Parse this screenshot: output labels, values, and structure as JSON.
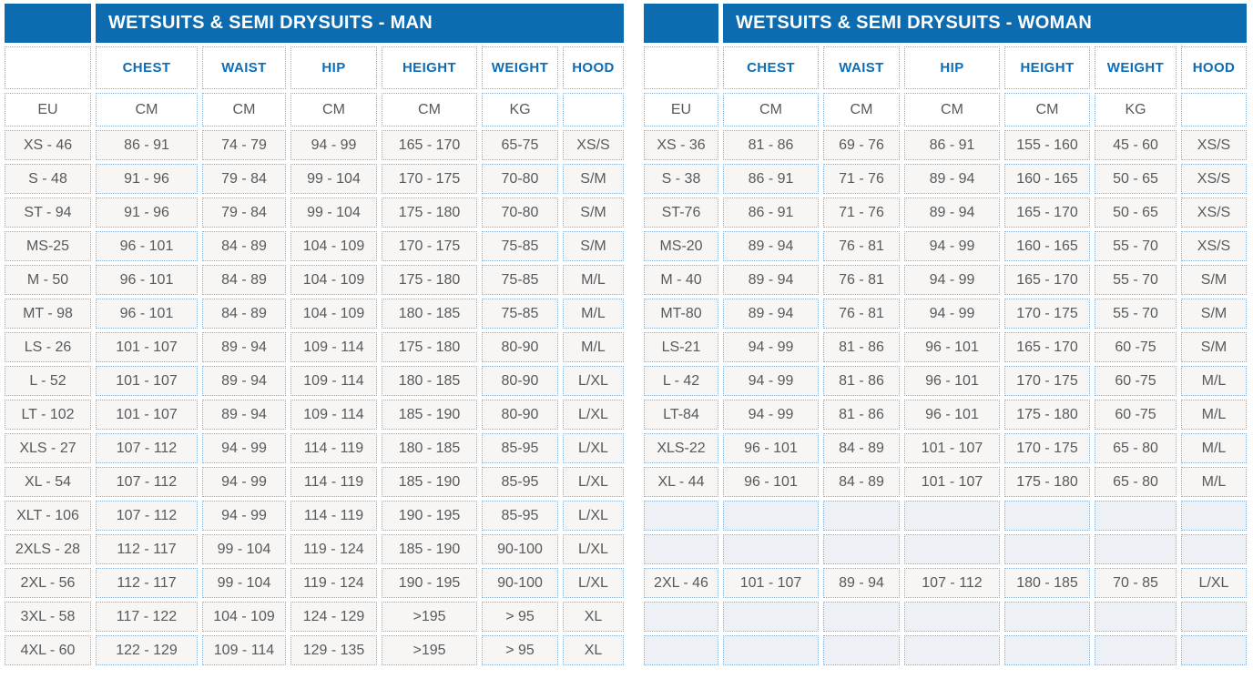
{
  "theme": {
    "title_bar_color": "#0d6bb0",
    "title_text_color": "#ffffff",
    "column_header_color": "#0d6db6",
    "cell_text_color": "#58595b",
    "grid_dot_color": "#8fb0cd",
    "cell_bg": "#f7f6f4",
    "header_bg": "#ffffff",
    "empty_cell_bg": "#edf1f6",
    "page_bg": "#ffffff"
  },
  "tables": [
    {
      "title": "WETSUITS & SEMI DRYSUITS - MAN",
      "columns": [
        "CHEST",
        "WAIST",
        "HIP",
        "HEIGHT",
        "WEIGHT",
        "HOOD"
      ],
      "units": [
        "EU",
        "CM",
        "CM",
        "CM",
        "CM",
        "KG",
        ""
      ],
      "rows": [
        [
          "XS - 46",
          "86 - 91",
          "74 - 79",
          "94 - 99",
          "165 - 170",
          "65-75",
          "XS/S"
        ],
        [
          "S - 48",
          "91 - 96",
          "79 - 84",
          "99 - 104",
          "170 - 175",
          "70-80",
          "S/M"
        ],
        [
          "ST - 94",
          "91 - 96",
          "79 - 84",
          "99 - 104",
          "175 - 180",
          "70-80",
          "S/M"
        ],
        [
          "MS-25",
          "96 - 101",
          "84 - 89",
          "104 - 109",
          "170 - 175",
          "75-85",
          "S/M"
        ],
        [
          "M - 50",
          "96 - 101",
          "84 - 89",
          "104 - 109",
          "175 - 180",
          "75-85",
          "M/L"
        ],
        [
          "MT - 98",
          "96 - 101",
          "84 - 89",
          "104 - 109",
          "180 - 185",
          "75-85",
          "M/L"
        ],
        [
          "LS - 26",
          "101 - 107",
          "89 - 94",
          "109 - 114",
          "175 - 180",
          "80-90",
          "M/L"
        ],
        [
          "L - 52",
          "101 - 107",
          "89 - 94",
          "109 - 114",
          "180 - 185",
          "80-90",
          "L/XL"
        ],
        [
          "LT - 102",
          "101 - 107",
          "89 - 94",
          "109 - 114",
          "185 - 190",
          "80-90",
          "L/XL"
        ],
        [
          "XLS - 27",
          "107 - 112",
          "94 - 99",
          "114 - 119",
          "180 - 185",
          "85-95",
          "L/XL"
        ],
        [
          "XL - 54",
          "107 - 112",
          "94 - 99",
          "114 - 119",
          "185 - 190",
          "85-95",
          "L/XL"
        ],
        [
          "XLT - 106",
          "107 - 112",
          "94 - 99",
          "114 - 119",
          "190 - 195",
          "85-95",
          "L/XL"
        ],
        [
          "2XLS - 28",
          "112 - 117",
          "99 - 104",
          "119 - 124",
          "185 - 190",
          "90-100",
          "L/XL"
        ],
        [
          "2XL - 56",
          "112 - 117",
          "99 - 104",
          "119 - 124",
          "190 - 195",
          "90-100",
          "L/XL"
        ],
        [
          "3XL - 58",
          "117 - 122",
          "104 - 109",
          "124 - 129",
          ">195",
          "> 95",
          "XL"
        ],
        [
          "4XL - 60",
          "122 - 129",
          "109 - 114",
          "129 - 135",
          ">195",
          "> 95",
          "XL"
        ]
      ]
    },
    {
      "title": "WETSUITS & SEMI DRYSUITS - WOMAN",
      "columns": [
        "CHEST",
        "WAIST",
        "HIP",
        "HEIGHT",
        "WEIGHT",
        "HOOD"
      ],
      "units": [
        "EU",
        "CM",
        "CM",
        "CM",
        "CM",
        "KG",
        ""
      ],
      "rows": [
        [
          "XS - 36",
          "81 - 86",
          "69 - 76",
          "86 - 91",
          "155 - 160",
          "45 - 60",
          "XS/S"
        ],
        [
          "S - 38",
          "86 - 91",
          "71 - 76",
          "89 - 94",
          "160 - 165",
          "50 - 65",
          "XS/S"
        ],
        [
          "ST-76",
          "86 - 91",
          "71 - 76",
          "89 - 94",
          "165 - 170",
          "50 - 65",
          "XS/S"
        ],
        [
          "MS-20",
          "89 - 94",
          "76 - 81",
          "94 - 99",
          "160 - 165",
          "55 - 70",
          "XS/S"
        ],
        [
          "M - 40",
          "89 - 94",
          "76 - 81",
          "94 - 99",
          "165 - 170",
          "55 - 70",
          "S/M"
        ],
        [
          "MT-80",
          "89 - 94",
          "76 - 81",
          "94 - 99",
          "170 - 175",
          "55 - 70",
          "S/M"
        ],
        [
          "LS-21",
          "94 - 99",
          "81 - 86",
          "96 - 101",
          "165 - 170",
          "60 -75",
          "S/M"
        ],
        [
          "L - 42",
          "94 - 99",
          "81 - 86",
          "96 - 101",
          "170 - 175",
          "60 -75",
          "M/L"
        ],
        [
          "LT-84",
          "94 - 99",
          "81 - 86",
          "96 - 101",
          "175 - 180",
          "60 -75",
          "M/L"
        ],
        [
          "XLS-22",
          "96 - 101",
          "84 - 89",
          "101 - 107",
          "170 - 175",
          "65 - 80",
          "M/L"
        ],
        [
          "XL - 44",
          "96 - 101",
          "84 - 89",
          "101 - 107",
          "175 - 180",
          "65 - 80",
          "M/L"
        ],
        [
          "",
          "",
          "",
          "",
          "",
          "",
          ""
        ],
        [
          "",
          "",
          "",
          "",
          "",
          "",
          ""
        ],
        [
          "2XL - 46",
          "101 - 107",
          "89 - 94",
          "107 - 112",
          "180 - 185",
          "70 - 85",
          "L/XL"
        ],
        [
          "",
          "",
          "",
          "",
          "",
          "",
          ""
        ],
        [
          "",
          "",
          "",
          "",
          "",
          "",
          ""
        ]
      ]
    }
  ]
}
